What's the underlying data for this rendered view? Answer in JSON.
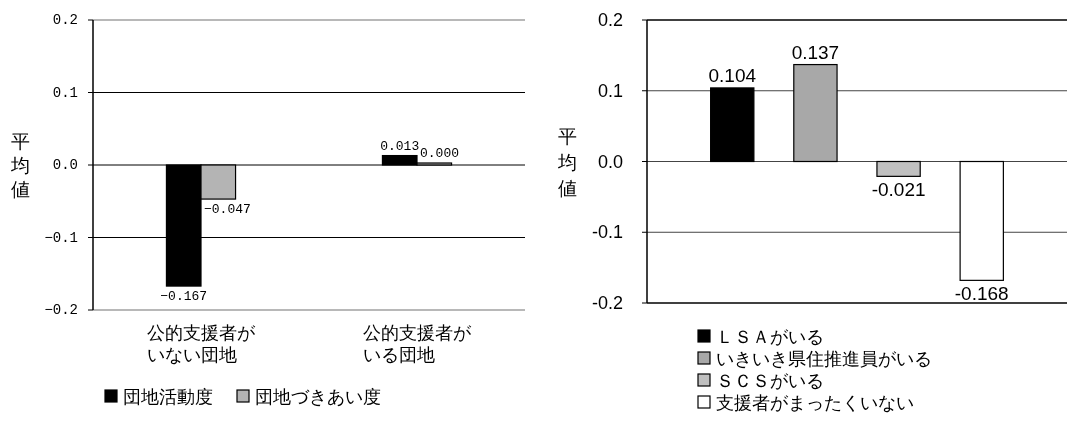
{
  "chart_data": [
    {
      "type": "bar",
      "categories": [
        "公的支援者がいない団地",
        "公的支援者がいる団地"
      ],
      "ylabel": "平均値",
      "ylim": [
        -0.2,
        0.2
      ],
      "yticks": [
        0.2,
        0.1,
        {
          "value": 0,
          "label": "0.0"
        },
        {
          "value": -0.1,
          "label": "−0.1"
        },
        {
          "value": -0.2,
          "label": "−0.2"
        }
      ],
      "grid": "y",
      "legend": "bottom",
      "series": [
        {
          "name": "団地活動度",
          "color": "#000000",
          "values": [
            -0.167,
            0.013
          ],
          "value_labels": [
            "−0.167",
            "0.013"
          ]
        },
        {
          "name": "団地づきあい度",
          "color": "#b4b4b4",
          "values": [
            -0.047,
            0.0
          ],
          "value_labels": [
            "−0.047",
            "0.000"
          ]
        }
      ]
    },
    {
      "type": "bar",
      "categories": [
        null
      ],
      "ylabel": "平均値",
      "ylim": [
        -0.2,
        0.2
      ],
      "yticks": [
        0.2,
        0.1,
        {
          "value": 0,
          "label": "0.0"
        },
        -0.1,
        -0.2
      ],
      "grid": "y",
      "legend": "bottom",
      "data_labels": true,
      "series": [
        {
          "name": "ＬＳＡがいる",
          "color": "#000000",
          "values": [
            0.104
          ]
        },
        {
          "name": "いきいき県住推進員がいる",
          "color": "#a8a8a8",
          "values": [
            0.137
          ]
        },
        {
          "name": "ＳＣＳがいる",
          "color": "#c0c0c0",
          "values": [
            -0.021
          ]
        },
        {
          "name": "支援者がまったくいない",
          "color": "#ffffff",
          "values": [
            -0.168
          ]
        }
      ]
    }
  ]
}
